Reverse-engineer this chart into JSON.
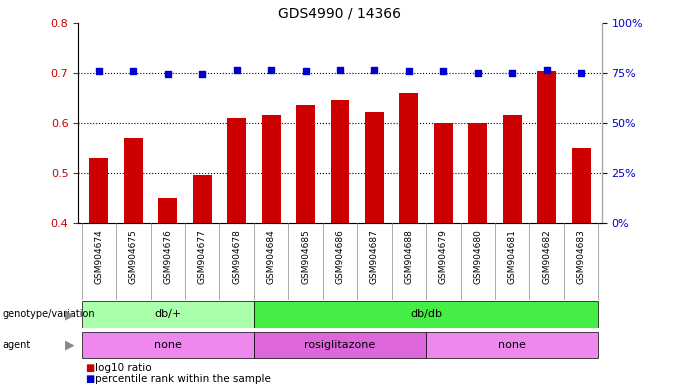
{
  "title": "GDS4990 / 14366",
  "samples": [
    "GSM904674",
    "GSM904675",
    "GSM904676",
    "GSM904677",
    "GSM904678",
    "GSM904684",
    "GSM904685",
    "GSM904686",
    "GSM904687",
    "GSM904688",
    "GSM904679",
    "GSM904680",
    "GSM904681",
    "GSM904682",
    "GSM904683"
  ],
  "log10_ratio": [
    0.53,
    0.57,
    0.45,
    0.495,
    0.61,
    0.615,
    0.635,
    0.645,
    0.622,
    0.66,
    0.6,
    0.6,
    0.615,
    0.703,
    0.55
  ],
  "percentile_rank": [
    76.0,
    76.0,
    74.5,
    74.5,
    76.5,
    76.5,
    76.2,
    76.5,
    76.5,
    76.2,
    76.2,
    75.0,
    75.2,
    76.5,
    75.2
  ],
  "bar_color": "#cc0000",
  "dot_color": "#0000cc",
  "ylim_left": [
    0.4,
    0.8
  ],
  "ylim_right": [
    0,
    100
  ],
  "yticks_left": [
    0.4,
    0.5,
    0.6,
    0.7,
    0.8
  ],
  "yticks_right": [
    0,
    25,
    50,
    75,
    100
  ],
  "dotted_lines": [
    0.5,
    0.6,
    0.7
  ],
  "genotype_groups": [
    {
      "label": "db/+",
      "start": 0,
      "end": 5,
      "color": "#aaffaa"
    },
    {
      "label": "db/db",
      "start": 5,
      "end": 15,
      "color": "#44ee44"
    }
  ],
  "agent_colors": [
    "#ee88ee",
    "#dd66dd",
    "#ee88ee"
  ],
  "agent_groups": [
    {
      "label": "none",
      "start": 0,
      "end": 5
    },
    {
      "label": "rosiglitazone",
      "start": 5,
      "end": 10
    },
    {
      "label": "none",
      "start": 10,
      "end": 15
    }
  ],
  "legend_items": [
    {
      "color": "#cc0000",
      "label": "log10 ratio"
    },
    {
      "color": "#0000cc",
      "label": "percentile rank within the sample"
    }
  ],
  "bg_color": "#ffffff",
  "xticklabel_bg": "#cccccc",
  "title_fontsize": 10,
  "axis_fontsize": 8,
  "tick_fontsize": 6.5
}
